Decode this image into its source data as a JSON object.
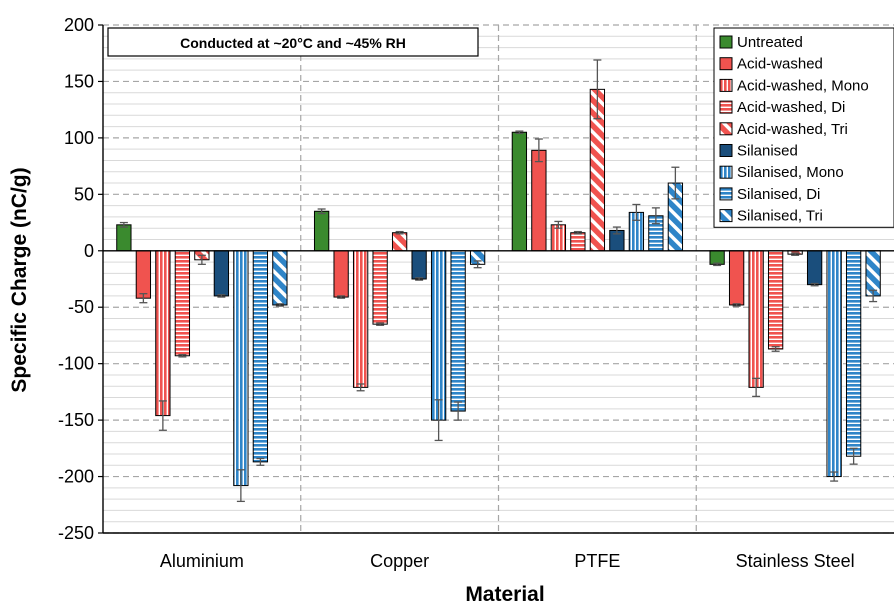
{
  "chart_data": {
    "type": "bar",
    "title": "",
    "xlabel": "Material",
    "ylabel": "Specific Charge (nC/g)",
    "ylim": [
      -250,
      200
    ],
    "ytick_step": 50,
    "yticks": [
      "200",
      "150",
      "100",
      "50",
      "0",
      "-50",
      "-100",
      "-150",
      "-200",
      "-250"
    ],
    "grid": true,
    "legend_position": "top-right",
    "annotation": "Conducted at ~20°C and ~45% RH",
    "categories": [
      "Aluminium",
      "Copper",
      "PTFE",
      "Stainless Steel"
    ],
    "series": [
      {
        "name": "Untreated",
        "color": "#3a8a2e",
        "pattern": "solid",
        "values": [
          23,
          35,
          105,
          -12
        ],
        "errors": [
          2,
          2,
          1,
          1
        ]
      },
      {
        "name": "Acid-washed",
        "color": "#f0534f",
        "pattern": "solid",
        "values": [
          -42,
          -41,
          89,
          -48
        ],
        "errors": [
          4,
          1,
          10,
          1
        ]
      },
      {
        "name": "Acid-washed, Mono",
        "color": "#f0534f",
        "pattern": "vertical",
        "values": [
          -146,
          -121,
          23,
          -121
        ],
        "errors": [
          13,
          3,
          3,
          8
        ]
      },
      {
        "name": "Acid-washed, Di",
        "color": "#f0534f",
        "pattern": "horizontal",
        "values": [
          -93,
          -65,
          16,
          -87
        ],
        "errors": [
          1,
          1,
          1,
          2
        ]
      },
      {
        "name": "Acid-washed, Tri",
        "color": "#f0534f",
        "pattern": "diagonal",
        "values": [
          -8,
          16,
          143,
          -3
        ],
        "errors": [
          4,
          1,
          26,
          1
        ]
      },
      {
        "name": "Silanised",
        "color": "#1a4e7c",
        "pattern": "solid",
        "values": [
          -40,
          -25,
          18,
          -30
        ],
        "errors": [
          1,
          1,
          3,
          1
        ]
      },
      {
        "name": "Silanised, Mono",
        "color": "#2f85c8",
        "pattern": "vertical",
        "values": [
          -208,
          -150,
          34,
          -200
        ],
        "errors": [
          14,
          18,
          7,
          4
        ]
      },
      {
        "name": "Silanised, Di",
        "color": "#2f85c8",
        "pattern": "horizontal",
        "values": [
          -187,
          -142,
          31,
          -182
        ],
        "errors": [
          3,
          8,
          7,
          7
        ]
      },
      {
        "name": "Silanised, Tri",
        "color": "#2f85c8",
        "pattern": "diagonal",
        "values": [
          -48,
          -12,
          60,
          -40
        ],
        "errors": [
          1,
          3,
          14,
          5
        ]
      }
    ]
  }
}
